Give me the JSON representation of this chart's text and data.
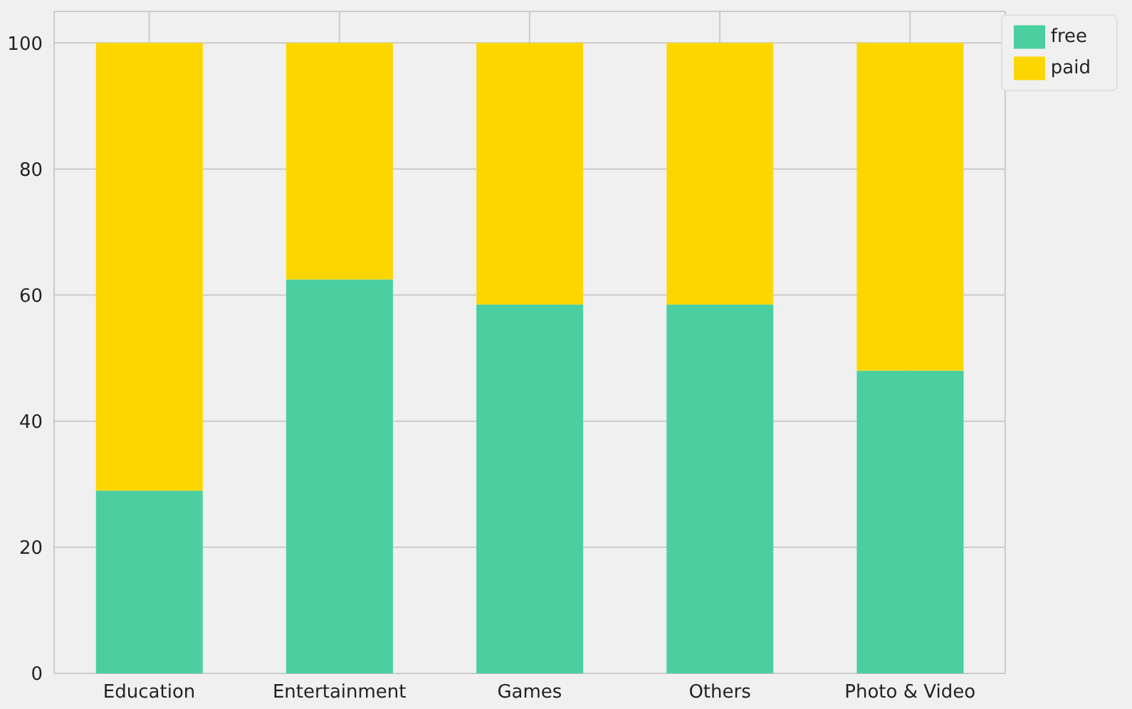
{
  "chart_data": {
    "type": "bar",
    "stacked": true,
    "categories": [
      "Education",
      "Entertainment",
      "Games",
      "Others",
      "Photo & Video"
    ],
    "series": [
      {
        "name": "free",
        "color": "#4ccfa0",
        "values": [
          29,
          62.5,
          58.5,
          58.5,
          48
        ]
      },
      {
        "name": "paid",
        "color": "#fdd600",
        "values": [
          71,
          37.5,
          41.5,
          41.5,
          52
        ]
      }
    ],
    "ylim": [
      0,
      105
    ],
    "yticks": [
      0,
      20,
      40,
      60,
      80,
      100
    ],
    "grid": true,
    "legend": "top right"
  }
}
